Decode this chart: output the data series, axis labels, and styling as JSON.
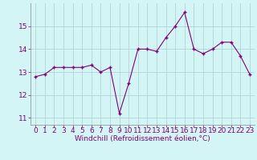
{
  "x": [
    0,
    1,
    2,
    3,
    4,
    5,
    6,
    7,
    8,
    9,
    10,
    11,
    12,
    13,
    14,
    15,
    16,
    17,
    18,
    19,
    20,
    21,
    22,
    23
  ],
  "y": [
    12.8,
    12.9,
    13.2,
    13.2,
    13.2,
    13.2,
    13.3,
    13.0,
    13.2,
    11.2,
    12.5,
    14.0,
    14.0,
    13.9,
    14.5,
    15.0,
    15.6,
    14.0,
    13.8,
    14.0,
    14.3,
    14.3,
    13.7,
    12.9
  ],
  "line_color": "#800080",
  "marker": "+",
  "marker_size": 3,
  "marker_linewidth": 1.0,
  "bg_color": "#d4f5f5",
  "grid_color": "#aacfcf",
  "xlabel": "Windchill (Refroidissement éolien,°C)",
  "xlabel_color": "#800080",
  "xlabel_fontsize": 6.5,
  "tick_label_color": "#800080",
  "tick_fontsize": 6.5,
  "ylim": [
    10.7,
    16.0
  ],
  "xlim": [
    -0.5,
    23.5
  ],
  "yticks": [
    11,
    12,
    13,
    14,
    15
  ],
  "xticks": [
    0,
    1,
    2,
    3,
    4,
    5,
    6,
    7,
    8,
    9,
    10,
    11,
    12,
    13,
    14,
    15,
    16,
    17,
    18,
    19,
    20,
    21,
    22,
    23
  ],
  "linewidth": 0.8
}
